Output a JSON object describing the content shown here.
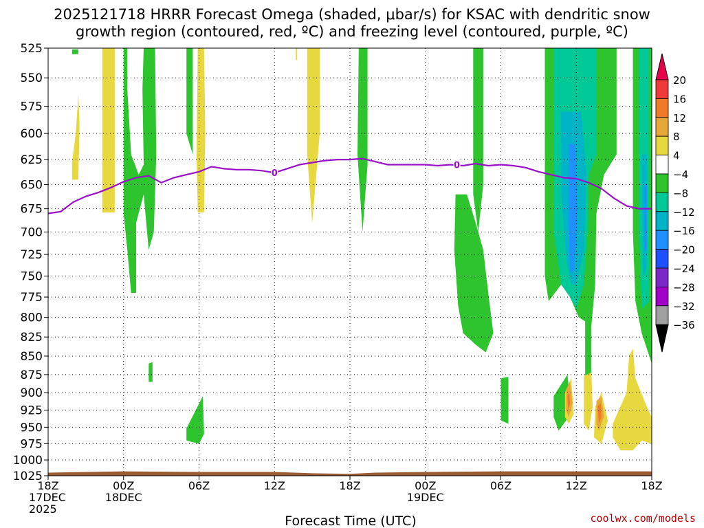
{
  "chart_data": {
    "type": "heatmap",
    "title_line1": "2025121718 HRRR Forecast Omega (shaded, μbar/s) for KSAC with dendritic snow",
    "title_line2": "growth region (contoured, red, ºC) and freezing level (contoured, purple, ºC)",
    "xlabel": "Forecast Time (UTC)",
    "ylabel": "",
    "credit": "coolwx.com/models",
    "y_axis": {
      "scale": "log-pressure",
      "range": [
        1025,
        525
      ],
      "ticks": [
        "525",
        "550",
        "575",
        "600",
        "625",
        "650",
        "675",
        "700",
        "725",
        "750",
        "775",
        "800",
        "825",
        "850",
        "875",
        "900",
        "925",
        "950",
        "975",
        "1000",
        "1025"
      ]
    },
    "x_axis": {
      "unit": "forecast hour",
      "range": [
        0,
        48
      ],
      "ticks": [
        {
          "hour": 0,
          "lines": [
            "18Z",
            "17DEC",
            "2025"
          ]
        },
        {
          "hour": 6,
          "lines": [
            "00Z",
            "18DEC"
          ]
        },
        {
          "hour": 12,
          "lines": [
            "06Z"
          ]
        },
        {
          "hour": 18,
          "lines": [
            "12Z"
          ]
        },
        {
          "hour": 24,
          "lines": [
            "18Z"
          ]
        },
        {
          "hour": 30,
          "lines": [
            "00Z",
            "19DEC"
          ]
        },
        {
          "hour": 36,
          "lines": [
            "06Z"
          ]
        },
        {
          "hour": 42,
          "lines": [
            "12Z"
          ]
        },
        {
          "hour": 48,
          "lines": [
            "18Z"
          ]
        }
      ]
    },
    "grid": "dotted",
    "colorbar": {
      "levels": [
        "20",
        "16",
        "12",
        "8",
        "4",
        "−4",
        "−8",
        "−12",
        "−16",
        "−20",
        "−24",
        "−28",
        "−32",
        "−36"
      ],
      "colors": [
        "#e8004a",
        "#f03a3a",
        "#f07a28",
        "#e8a838",
        "#e8d840",
        "#ffffff",
        "#2dc42d",
        "#00c896",
        "#00b4c8",
        "#1e90ff",
        "#1e50ff",
        "#7a28c8",
        "#a000c8",
        "#a0a0a0",
        "#000000"
      ]
    },
    "colors": {
      "freezing_level": "#9a10c8",
      "terrain": "#9a5a32",
      "credit": "#b00000"
    },
    "freezing_level": {
      "label": "0",
      "points": [
        [
          0,
          680
        ],
        [
          1,
          678
        ],
        [
          2,
          668
        ],
        [
          3,
          662
        ],
        [
          4,
          658
        ],
        [
          5,
          653
        ],
        [
          6,
          647
        ],
        [
          7,
          643
        ],
        [
          8,
          641
        ],
        [
          9,
          648
        ],
        [
          10,
          643
        ],
        [
          11,
          640
        ],
        [
          12,
          637
        ],
        [
          13,
          632
        ],
        [
          14,
          634
        ],
        [
          15,
          635
        ],
        [
          16,
          635
        ],
        [
          17,
          636
        ],
        [
          18,
          638
        ],
        [
          19,
          634
        ],
        [
          20,
          630
        ],
        [
          21,
          628
        ],
        [
          22,
          626
        ],
        [
          23,
          625
        ],
        [
          24,
          625
        ],
        [
          25,
          624
        ],
        [
          26,
          627
        ],
        [
          27,
          630
        ],
        [
          28,
          630
        ],
        [
          29,
          630
        ],
        [
          30,
          630
        ],
        [
          31,
          631
        ],
        [
          32,
          630
        ],
        [
          33,
          631
        ],
        [
          34,
          629
        ],
        [
          35,
          631
        ],
        [
          36,
          630
        ],
        [
          37,
          631
        ],
        [
          38,
          633
        ],
        [
          39,
          637
        ],
        [
          40,
          640
        ],
        [
          41,
          643
        ],
        [
          42,
          644
        ],
        [
          43,
          648
        ],
        [
          44,
          654
        ],
        [
          45,
          664
        ],
        [
          46,
          672
        ],
        [
          47,
          675
        ],
        [
          48,
          675
        ]
      ],
      "label_hours": [
        18,
        32.5
      ]
    },
    "terrain_pressure": [
      [
        0,
        1020
      ],
      [
        6,
        1018
      ],
      [
        12,
        1019
      ],
      [
        18,
        1019
      ],
      [
        21,
        1021
      ],
      [
        24,
        1022
      ],
      [
        26,
        1020
      ],
      [
        30,
        1019
      ],
      [
        36,
        1018
      ],
      [
        42,
        1018
      ],
      [
        48,
        1018
      ]
    ],
    "omega_regions": [
      {
        "level": "4",
        "pts": [
          [
            4.3,
            525
          ],
          [
            5.3,
            525
          ],
          [
            5.3,
            679
          ],
          [
            4.3,
            679
          ]
        ]
      },
      {
        "level": "4",
        "pts": [
          [
            1.9,
            628
          ],
          [
            2.2,
            600
          ],
          [
            2.4,
            565
          ],
          [
            2.5,
            590
          ],
          [
            2.4,
            645
          ],
          [
            1.9,
            645
          ]
        ]
      },
      {
        "level": "4",
        "pts": [
          [
            11.9,
            525
          ],
          [
            12.4,
            525
          ],
          [
            12.5,
            600
          ],
          [
            12.4,
            679
          ],
          [
            11.9,
            679
          ],
          [
            11.8,
            620
          ]
        ]
      },
      {
        "level": "4",
        "pts": [
          [
            20.6,
            525
          ],
          [
            21.6,
            525
          ],
          [
            21.6,
            600
          ],
          [
            21.0,
            690
          ],
          [
            20.6,
            620
          ]
        ]
      },
      {
        "level": "4",
        "pts": [
          [
            19.7,
            525
          ],
          [
            19.8,
            525
          ],
          [
            19.8,
            535
          ],
          [
            19.7,
            535
          ]
        ]
      },
      {
        "level": "-4",
        "pts": [
          [
            6.0,
            525
          ],
          [
            6.3,
            525
          ],
          [
            6.3,
            560
          ],
          [
            6.6,
            620
          ],
          [
            7.2,
            640
          ],
          [
            7.6,
            630
          ],
          [
            7.5,
            560
          ],
          [
            7.6,
            525
          ],
          [
            8.5,
            525
          ],
          [
            8.6,
            620
          ],
          [
            8.4,
            700
          ],
          [
            8.0,
            720
          ],
          [
            7.6,
            660
          ],
          [
            7.0,
            690
          ],
          [
            7.0,
            770
          ],
          [
            6.6,
            770
          ],
          [
            6.3,
            720
          ],
          [
            6.0,
            680
          ]
        ]
      },
      {
        "level": "-4",
        "pts": [
          [
            11.0,
            525
          ],
          [
            11.5,
            525
          ],
          [
            11.5,
            620
          ],
          [
            11.0,
            600
          ]
        ]
      },
      {
        "level": "-4",
        "pts": [
          [
            24.7,
            525
          ],
          [
            25.4,
            525
          ],
          [
            25.4,
            630
          ],
          [
            25.0,
            700
          ],
          [
            24.6,
            620
          ]
        ]
      },
      {
        "level": "-4",
        "pts": [
          [
            33.8,
            525
          ],
          [
            34.6,
            525
          ],
          [
            34.6,
            650
          ],
          [
            34.2,
            700
          ],
          [
            33.8,
            660
          ]
        ]
      },
      {
        "level": "-4",
        "pts": [
          [
            32.4,
            660
          ],
          [
            33.3,
            660
          ],
          [
            34.0,
            690
          ],
          [
            34.6,
            720
          ],
          [
            35.0,
            770
          ],
          [
            35.4,
            820
          ],
          [
            34.8,
            845
          ],
          [
            34.0,
            835
          ],
          [
            33.0,
            820
          ],
          [
            32.6,
            785
          ],
          [
            32.3,
            720
          ]
        ]
      },
      {
        "level": "-4",
        "pts": [
          [
            39.5,
            525
          ],
          [
            45.2,
            525
          ],
          [
            45.2,
            620
          ],
          [
            44.2,
            640
          ],
          [
            43.6,
            680
          ],
          [
            43.5,
            760
          ],
          [
            43.2,
            810
          ],
          [
            42.2,
            800
          ],
          [
            41.5,
            775
          ],
          [
            40.8,
            760
          ],
          [
            39.8,
            780
          ],
          [
            39.5,
            750
          ]
        ]
      },
      {
        "level": "-4",
        "pts": [
          [
            46.5,
            525
          ],
          [
            48.0,
            525
          ],
          [
            48.0,
            860
          ],
          [
            47.2,
            820
          ],
          [
            46.7,
            780
          ],
          [
            46.5,
            700
          ]
        ]
      },
      {
        "level": "-4",
        "pts": [
          [
            1.9,
            526
          ],
          [
            2.4,
            526
          ],
          [
            2.4,
            530
          ],
          [
            1.9,
            530
          ]
        ]
      },
      {
        "level": "-4",
        "pts": [
          [
            8.0,
            860
          ],
          [
            8.3,
            858
          ],
          [
            8.3,
            885
          ],
          [
            8.0,
            885
          ]
        ]
      },
      {
        "level": "-4",
        "pts": [
          [
            11.0,
            952
          ],
          [
            12.3,
            905
          ],
          [
            12.4,
            960
          ],
          [
            12.0,
            975
          ],
          [
            11.0,
            970
          ]
        ]
      },
      {
        "level": "-4",
        "pts": [
          [
            36.0,
            880
          ],
          [
            36.6,
            878
          ],
          [
            36.6,
            945
          ],
          [
            36.0,
            940
          ]
        ]
      },
      {
        "level": "-4",
        "pts": [
          [
            40.2,
            905
          ],
          [
            41.3,
            875
          ],
          [
            41.6,
            930
          ],
          [
            40.6,
            955
          ],
          [
            40.2,
            935
          ]
        ]
      },
      {
        "level": "-4",
        "pts": [
          [
            42.7,
            790
          ],
          [
            43.2,
            790
          ],
          [
            43.2,
            920
          ],
          [
            42.7,
            915
          ]
        ]
      },
      {
        "level": "-8",
        "pts": [
          [
            40.2,
            525
          ],
          [
            43.6,
            525
          ],
          [
            43.6,
            620
          ],
          [
            43.0,
            640
          ],
          [
            42.9,
            700
          ],
          [
            42.6,
            760
          ],
          [
            42.0,
            790
          ],
          [
            41.5,
            775
          ],
          [
            40.8,
            760
          ],
          [
            40.2,
            700
          ]
        ]
      },
      {
        "level": "-8",
        "pts": [
          [
            47.0,
            525
          ],
          [
            47.8,
            525
          ],
          [
            47.8,
            780
          ],
          [
            47.2,
            790
          ],
          [
            47.0,
            700
          ]
        ]
      },
      {
        "level": "-12",
        "pts": [
          [
            40.8,
            580
          ],
          [
            42.4,
            580
          ],
          [
            42.8,
            640
          ],
          [
            42.6,
            720
          ],
          [
            42.0,
            760
          ],
          [
            41.6,
            760
          ],
          [
            41.2,
            730
          ],
          [
            40.8,
            660
          ]
        ]
      },
      {
        "level": "-12",
        "pts": [
          [
            47.2,
            620
          ],
          [
            47.6,
            620
          ],
          [
            47.6,
            740
          ],
          [
            47.3,
            750
          ]
        ]
      },
      {
        "level": "-16",
        "pts": [
          [
            41.4,
            610
          ],
          [
            41.9,
            610
          ],
          [
            42.1,
            680
          ],
          [
            41.8,
            745
          ],
          [
            41.5,
            745
          ],
          [
            41.4,
            690
          ]
        ]
      },
      {
        "level": "-16",
        "pts": [
          [
            47.4,
            650
          ],
          [
            47.6,
            650
          ],
          [
            47.6,
            720
          ],
          [
            47.4,
            720
          ]
        ]
      },
      {
        "level": "4",
        "pts": [
          [
            42.6,
            877
          ],
          [
            43.2,
            872
          ],
          [
            43.3,
            920
          ],
          [
            43.0,
            955
          ],
          [
            42.6,
            945
          ]
        ]
      },
      {
        "level": "4",
        "pts": [
          [
            41.1,
            900
          ],
          [
            41.6,
            880
          ],
          [
            41.8,
            930
          ],
          [
            41.4,
            945
          ],
          [
            41.1,
            935
          ]
        ]
      },
      {
        "level": "4",
        "pts": [
          [
            43.5,
            920
          ],
          [
            44.0,
            900
          ],
          [
            44.5,
            940
          ],
          [
            44.0,
            975
          ],
          [
            43.4,
            965
          ]
        ]
      },
      {
        "level": "4",
        "pts": [
          [
            44.9,
            945
          ],
          [
            46.0,
            900
          ],
          [
            46.2,
            850
          ],
          [
            46.5,
            840
          ],
          [
            46.7,
            880
          ],
          [
            47.6,
            920
          ],
          [
            48.0,
            935
          ],
          [
            48.0,
            975
          ],
          [
            47.2,
            970
          ],
          [
            46.5,
            985
          ],
          [
            45.5,
            985
          ],
          [
            44.9,
            965
          ]
        ]
      },
      {
        "level": "8",
        "pts": [
          [
            41.2,
            895
          ],
          [
            41.5,
            885
          ],
          [
            41.7,
            915
          ],
          [
            41.4,
            935
          ],
          [
            41.2,
            925
          ]
        ]
      },
      {
        "level": "8",
        "pts": [
          [
            43.6,
            912
          ],
          [
            44.0,
            905
          ],
          [
            44.2,
            935
          ],
          [
            43.8,
            955
          ],
          [
            43.6,
            945
          ]
        ]
      },
      {
        "level": "12",
        "pts": [
          [
            41.3,
            905
          ],
          [
            41.45,
            900
          ],
          [
            41.5,
            915
          ],
          [
            41.35,
            925
          ]
        ]
      },
      {
        "level": "12",
        "pts": [
          [
            43.7,
            920
          ],
          [
            43.95,
            915
          ],
          [
            44.0,
            935
          ],
          [
            43.8,
            945
          ]
        ]
      }
    ]
  }
}
